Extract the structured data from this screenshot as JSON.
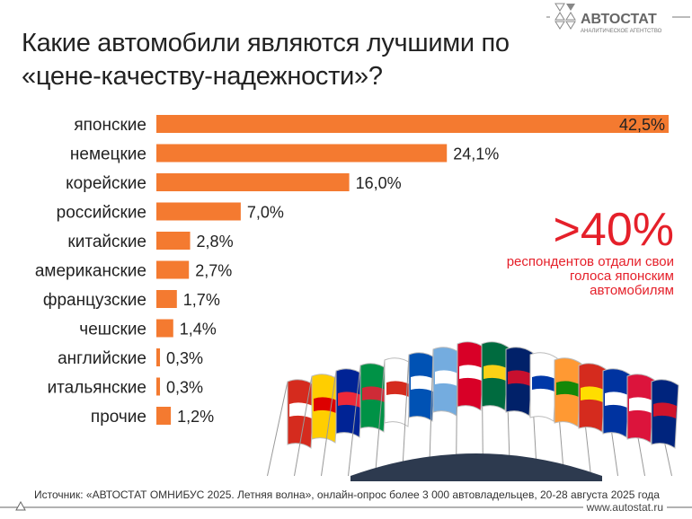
{
  "logo": {
    "name": "АВТОСТАТ",
    "tagline": "АНАЛИТИЧЕСКОЕ АГЕНТСТВО"
  },
  "title": "Какие автомобили являются лучшими по «цене-качеству-надежности»?",
  "callout": {
    "big": ">40%",
    "text": "респондентов отдали свои голоса японским автомобилям"
  },
  "source": "Источник: «АВТОСТАТ ОМНИБУС 2025. Летняя волна», онлайн-опрос более 3 000 автовладельцев, 20-28 августа 2025 года",
  "url": "www.autostat.ru",
  "colors": {
    "bar": "#f47a30",
    "accent": "#e5202a"
  },
  "chart_data": {
    "type": "bar",
    "orientation": "horizontal",
    "categories": [
      "японские",
      "немецкие",
      "корейские",
      "российские",
      "китайские",
      "американские",
      "французские",
      "чешские",
      "английские",
      "итальянские",
      "прочие"
    ],
    "values": [
      42.5,
      24.1,
      16.0,
      7.0,
      2.8,
      2.7,
      1.7,
      1.4,
      0.3,
      0.3,
      1.2
    ],
    "labels": [
      "42,5%",
      "24,1%",
      "16,0%",
      "7,0%",
      "2,8%",
      "2,7%",
      "1,7%",
      "1,4%",
      "0,3%",
      "0,3%",
      "1,2%"
    ],
    "unit": "%",
    "grid": false
  }
}
